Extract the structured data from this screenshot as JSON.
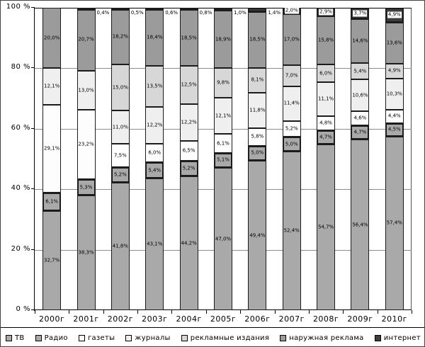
{
  "chart_data": {
    "type": "bar",
    "stacked": true,
    "percent_stacked": true,
    "title": "",
    "xlabel": "",
    "ylabel": "",
    "grid": true,
    "legend_position": "bottom",
    "y_axis": {
      "min": 0,
      "max": 100,
      "tick_step": 20,
      "tick_labels": [
        "0 %",
        "20 %",
        "40 %",
        "60 %",
        "80 %",
        "100 %"
      ]
    },
    "categories": [
      "2000г",
      "2001г",
      "2002г",
      "2003г",
      "2004г",
      "2005г",
      "2006г",
      "2007г",
      "2008г",
      "2009г",
      "2010г"
    ],
    "series": [
      {
        "name": "ТВ",
        "color": "#a9a9a9",
        "border_px": 1,
        "values": [
          32.7,
          38.3,
          41.8,
          43.1,
          44.2,
          47.0,
          49.4,
          52.4,
          54.7,
          56.4,
          57.4
        ]
      },
      {
        "name": "Радио",
        "color": "#a9a9a9",
        "border_px": 2,
        "values": [
          6.1,
          5.3,
          5.2,
          5.4,
          5.2,
          5.1,
          5.0,
          5.0,
          4.7,
          4.7,
          4.5
        ]
      },
      {
        "name": "газеты",
        "color": "#fdfdfd",
        "border_px": 1,
        "values": [
          29.1,
          23.2,
          7.5,
          6.0,
          6.5,
          6.1,
          5.8,
          5.2,
          4.8,
          4.6,
          4.4
        ]
      },
      {
        "name": "журналы",
        "color": "#efefef",
        "border_px": 1,
        "values": [
          12.1,
          13.0,
          11.0,
          12.2,
          12.2,
          12.1,
          11.8,
          11.4,
          11.1,
          10.6,
          10.3
        ]
      },
      {
        "name": "рекламные издания",
        "color": "#d7d7d7",
        "border_px": 1,
        "values": [
          null,
          null,
          15.0,
          13.5,
          12.5,
          9.8,
          8.1,
          7.0,
          6.0,
          5.4,
          4.9
        ]
      },
      {
        "name": "наружная реклама",
        "color": "#9b9b9b",
        "border_px": 1,
        "values": [
          20.0,
          20.7,
          18.2,
          18.4,
          18.5,
          18.9,
          18.5,
          17.0,
          15.8,
          14.6,
          13.6
        ]
      },
      {
        "name": "интернет",
        "color": "#3d3d3d",
        "border_px": 2,
        "label_outside_if_below": 1.6,
        "values": [
          null,
          0.4,
          0.5,
          0.6,
          0.8,
          1.0,
          1.4,
          2.0,
          2.9,
          3.7,
          4.9
        ]
      }
    ],
    "label_decimal_separator": ",",
    "label_suffix": "%"
  }
}
